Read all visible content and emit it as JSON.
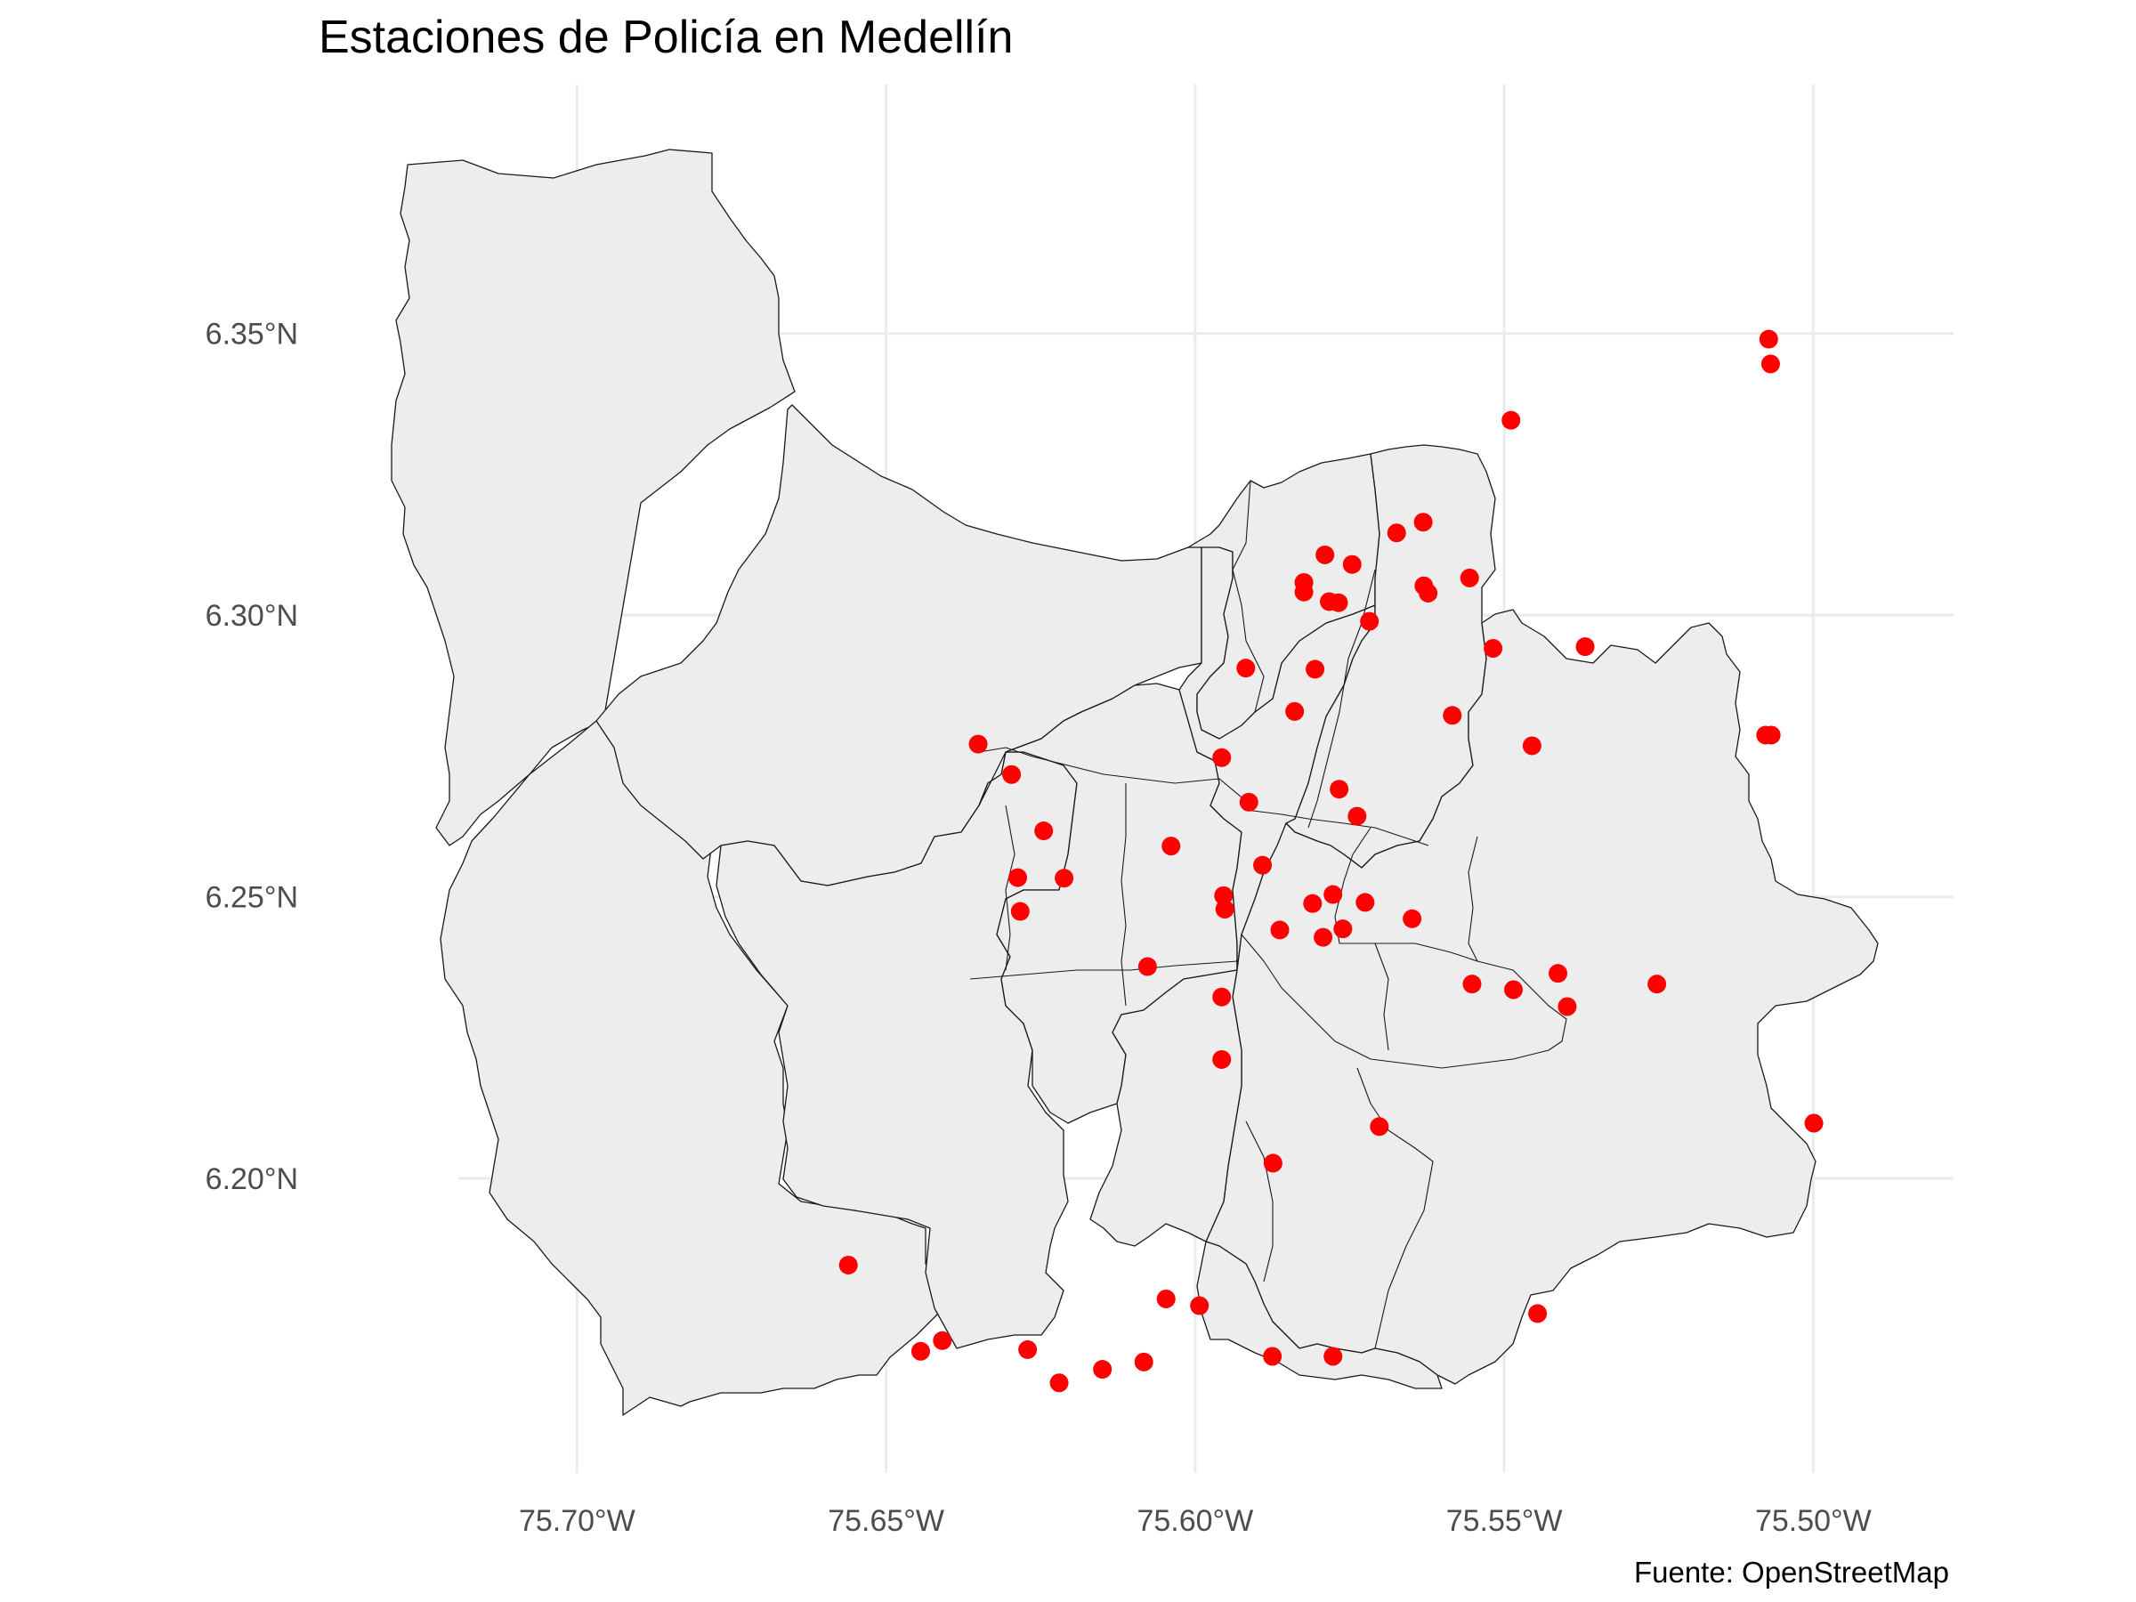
{
  "title": "Estaciones de Policía en Medellín",
  "caption": "Fuente: OpenStreetMap",
  "colors": {
    "background": "#ffffff",
    "land": "#ededed",
    "border": "#1a1a1a",
    "points": "#ff0000",
    "grid": "#ebebeb"
  },
  "axes": {
    "x_ticks": [
      {
        "value": -75.7,
        "label": "75.70°W"
      },
      {
        "value": -75.65,
        "label": "75.65°W"
      },
      {
        "value": -75.6,
        "label": "75.60°W"
      },
      {
        "value": -75.55,
        "label": "75.55°W"
      },
      {
        "value": -75.5,
        "label": "75.50°W"
      }
    ],
    "y_ticks": [
      {
        "value": 6.35,
        "label": "6.35°N"
      },
      {
        "value": 6.3,
        "label": "6.30°N"
      },
      {
        "value": 6.25,
        "label": "6.25°N"
      },
      {
        "value": 6.2,
        "label": "6.20°N"
      }
    ],
    "xlim": [
      -75.7192,
      -75.4773
    ],
    "ylim": [
      6.1477,
      6.3942
    ]
  },
  "chart_data": {
    "type": "scatter",
    "title": "Estaciones de Policía en Medellín",
    "caption": "Fuente: OpenStreetMap",
    "xlabel": "",
    "ylabel": "",
    "xlim": [
      -75.7192,
      -75.4773
    ],
    "ylim": [
      6.1477,
      6.3942
    ],
    "grid": true,
    "legend": "none",
    "points": [
      {
        "lon": -75.5072,
        "lat": 6.349
      },
      {
        "lon": -75.5069,
        "lat": 6.3446
      },
      {
        "lon": -75.5489,
        "lat": 6.3346
      },
      {
        "lon": -75.5631,
        "lat": 6.3165
      },
      {
        "lon": -75.5674,
        "lat": 6.3146
      },
      {
        "lon": -75.579,
        "lat": 6.3107
      },
      {
        "lon": -75.5746,
        "lat": 6.309
      },
      {
        "lon": -75.5824,
        "lat": 6.3058
      },
      {
        "lon": -75.5824,
        "lat": 6.3041
      },
      {
        "lon": -75.5783,
        "lat": 6.3024
      },
      {
        "lon": -75.5768,
        "lat": 6.3022
      },
      {
        "lon": -75.5718,
        "lat": 6.2989
      },
      {
        "lon": -75.563,
        "lat": 6.3052
      },
      {
        "lon": -75.5623,
        "lat": 6.3039
      },
      {
        "lon": -75.5556,
        "lat": 6.3066
      },
      {
        "lon": -75.5518,
        "lat": 6.2941
      },
      {
        "lon": -75.5369,
        "lat": 6.2944
      },
      {
        "lon": -75.5806,
        "lat": 6.2904
      },
      {
        "lon": -75.5918,
        "lat": 6.2906
      },
      {
        "lon": -75.5839,
        "lat": 6.2829
      },
      {
        "lon": -75.5584,
        "lat": 6.2822
      },
      {
        "lon": -75.5455,
        "lat": 6.2768
      },
      {
        "lon": -75.5077,
        "lat": 6.2787
      },
      {
        "lon": -75.5068,
        "lat": 6.2787
      },
      {
        "lon": -75.6351,
        "lat": 6.2771
      },
      {
        "lon": -75.5957,
        "lat": 6.2747
      },
      {
        "lon": -75.6297,
        "lat": 6.2717
      },
      {
        "lon": -75.5767,
        "lat": 6.2691
      },
      {
        "lon": -75.5913,
        "lat": 6.2668
      },
      {
        "lon": -75.5738,
        "lat": 6.2643
      },
      {
        "lon": -75.6245,
        "lat": 6.2617
      },
      {
        "lon": -75.6039,
        "lat": 6.259
      },
      {
        "lon": -75.5891,
        "lat": 6.2556
      },
      {
        "lon": -75.6287,
        "lat": 6.2534
      },
      {
        "lon": -75.6212,
        "lat": 6.2533
      },
      {
        "lon": -75.5954,
        "lat": 6.2502
      },
      {
        "lon": -75.5777,
        "lat": 6.2504
      },
      {
        "lon": -75.5952,
        "lat": 6.2478
      },
      {
        "lon": -75.581,
        "lat": 6.2488
      },
      {
        "lon": -75.5725,
        "lat": 6.249
      },
      {
        "lon": -75.6283,
        "lat": 6.2474
      },
      {
        "lon": -75.5649,
        "lat": 6.2461
      },
      {
        "lon": -75.5863,
        "lat": 6.2441
      },
      {
        "lon": -75.5761,
        "lat": 6.2443
      },
      {
        "lon": -75.5793,
        "lat": 6.2428
      },
      {
        "lon": -75.6077,
        "lat": 6.2376
      },
      {
        "lon": -75.5413,
        "lat": 6.2364
      },
      {
        "lon": -75.5552,
        "lat": 6.2345
      },
      {
        "lon": -75.5485,
        "lat": 6.2335
      },
      {
        "lon": -75.5253,
        "lat": 6.2345
      },
      {
        "lon": -75.5957,
        "lat": 6.2322
      },
      {
        "lon": -75.5398,
        "lat": 6.2305
      },
      {
        "lon": -75.5957,
        "lat": 6.2211
      },
      {
        "lon": -75.5702,
        "lat": 6.2092
      },
      {
        "lon": -75.4999,
        "lat": 6.2098
      },
      {
        "lon": -75.5874,
        "lat": 6.2027
      },
      {
        "lon": -75.6561,
        "lat": 6.1846
      },
      {
        "lon": -75.6047,
        "lat": 6.1786
      },
      {
        "lon": -75.5993,
        "lat": 6.1774
      },
      {
        "lon": -75.5446,
        "lat": 6.176
      },
      {
        "lon": -75.6409,
        "lat": 6.1712
      },
      {
        "lon": -75.6444,
        "lat": 6.1693
      },
      {
        "lon": -75.6271,
        "lat": 6.1696
      },
      {
        "lon": -75.5875,
        "lat": 6.1684
      },
      {
        "lon": -75.5777,
        "lat": 6.1684
      },
      {
        "lon": -75.6083,
        "lat": 6.1674
      },
      {
        "lon": -75.615,
        "lat": 6.1661
      },
      {
        "lon": -75.622,
        "lat": 6.1637
      }
    ]
  }
}
